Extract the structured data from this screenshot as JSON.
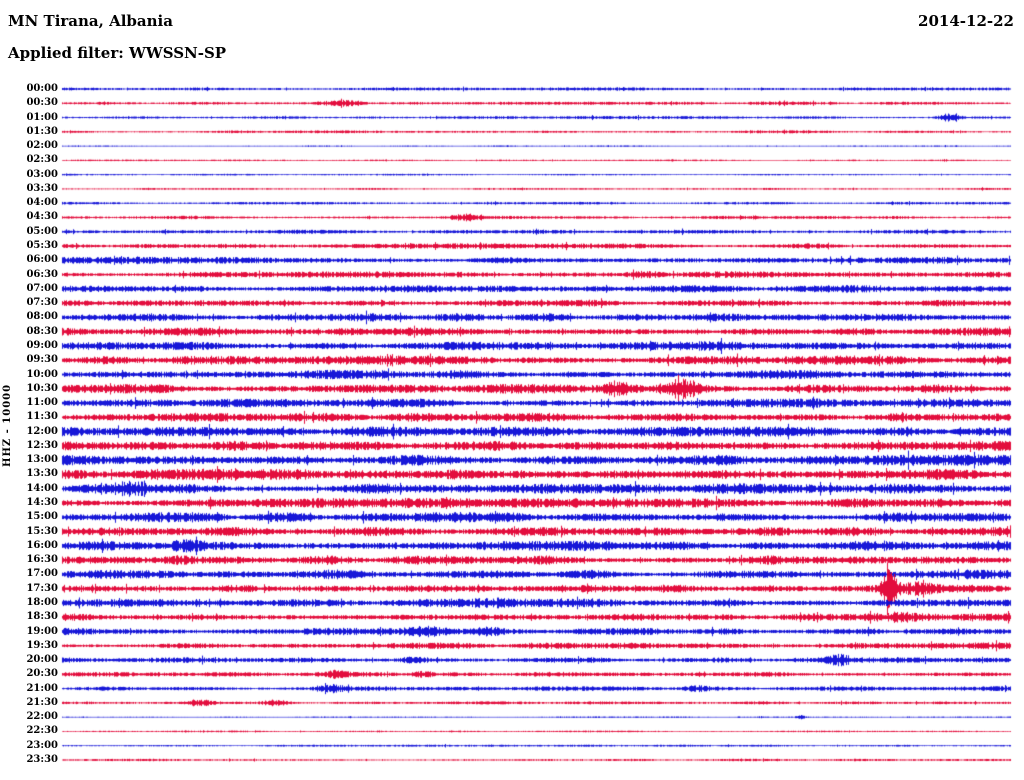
{
  "header": {
    "station": "MN Tirana, Albania",
    "date": "2014-12-22",
    "filter_line": "Applied filter: WWSSN-SP"
  },
  "chart_data": {
    "type": "line",
    "title": "MN Tirana, Albania helicorder",
    "ylabel": "HHZ - 10000",
    "xlabel": "",
    "legend": "none",
    "grid": false,
    "x_axis": {
      "start": "00:00",
      "minutes_per_line": 30,
      "lines": 48
    },
    "colors": {
      "blue": "#0b0bd6",
      "red": "#e20033"
    },
    "rows": [
      {
        "t": "00:00",
        "color": "blue",
        "a": 1.0,
        "b": []
      },
      {
        "t": "00:30",
        "color": "red",
        "a": 1.1,
        "b": [
          {
            "p": 0.3,
            "a": 2.2,
            "s": 0.014
          }
        ]
      },
      {
        "t": "01:00",
        "color": "blue",
        "a": 1.0,
        "b": [
          {
            "p": 0.935,
            "a": 3.0,
            "s": 0.008
          }
        ]
      },
      {
        "t": "01:30",
        "color": "red",
        "a": 1.0,
        "b": []
      },
      {
        "t": "02:00",
        "color": "blue",
        "a": 0.45,
        "b": []
      },
      {
        "t": "02:30",
        "color": "red",
        "a": 0.55,
        "b": []
      },
      {
        "t": "03:00",
        "color": "blue",
        "a": 0.6,
        "b": []
      },
      {
        "t": "03:30",
        "color": "red",
        "a": 0.7,
        "b": []
      },
      {
        "t": "04:00",
        "color": "blue",
        "a": 0.9,
        "b": []
      },
      {
        "t": "04:30",
        "color": "red",
        "a": 1.1,
        "b": [
          {
            "p": 0.425,
            "a": 2.8,
            "s": 0.012
          }
        ]
      },
      {
        "t": "05:00",
        "color": "blue",
        "a": 1.4,
        "b": []
      },
      {
        "t": "05:30",
        "color": "red",
        "a": 1.7,
        "b": [
          {
            "p": 0.55,
            "a": 0.8,
            "s": 0.03
          }
        ]
      },
      {
        "t": "06:00",
        "color": "blue",
        "a": 2.1,
        "b": []
      },
      {
        "t": "06:30",
        "color": "red",
        "a": 2.1,
        "b": [
          {
            "p": 0.615,
            "a": 1.5,
            "s": 0.012
          }
        ]
      },
      {
        "t": "07:00",
        "color": "blue",
        "a": 2.4,
        "b": []
      },
      {
        "t": "07:30",
        "color": "red",
        "a": 2.2,
        "b": []
      },
      {
        "t": "08:00",
        "color": "blue",
        "a": 2.7,
        "b": []
      },
      {
        "t": "08:30",
        "color": "red",
        "a": 2.9,
        "b": [
          {
            "p": 0.3,
            "a": 1.5,
            "s": 0.01
          }
        ]
      },
      {
        "t": "09:00",
        "color": "blue",
        "a": 2.9,
        "b": []
      },
      {
        "t": "09:30",
        "color": "red",
        "a": 3.0,
        "b": []
      },
      {
        "t": "10:00",
        "color": "blue",
        "a": 3.1,
        "b": []
      },
      {
        "t": "10:30",
        "color": "red",
        "a": 3.1,
        "b": [
          {
            "p": 0.585,
            "a": 4.5,
            "s": 0.013
          },
          {
            "p": 0.655,
            "a": 5.5,
            "s": 0.013
          }
        ]
      },
      {
        "t": "11:00",
        "color": "blue",
        "a": 3.4,
        "b": []
      },
      {
        "t": "11:30",
        "color": "red",
        "a": 3.2,
        "b": []
      },
      {
        "t": "12:00",
        "color": "blue",
        "a": 3.4,
        "b": []
      },
      {
        "t": "12:30",
        "color": "red",
        "a": 3.5,
        "b": []
      },
      {
        "t": "13:00",
        "color": "blue",
        "a": 3.9,
        "b": []
      },
      {
        "t": "13:30",
        "color": "red",
        "a": 3.6,
        "b": []
      },
      {
        "t": "14:00",
        "color": "blue",
        "a": 3.4,
        "b": [
          {
            "p": 0.075,
            "a": 3.5,
            "s": 0.012
          }
        ]
      },
      {
        "t": "14:30",
        "color": "red",
        "a": 3.2,
        "b": []
      },
      {
        "t": "15:00",
        "color": "blue",
        "a": 3.4,
        "b": [
          {
            "p": 0.47,
            "a": 1.5,
            "s": 0.02
          }
        ]
      },
      {
        "t": "15:30",
        "color": "red",
        "a": 3.2,
        "b": []
      },
      {
        "t": "16:00",
        "color": "blue",
        "a": 3.2,
        "b": [
          {
            "p": 0.13,
            "a": 2.5,
            "s": 0.01
          }
        ]
      },
      {
        "t": "16:30",
        "color": "red",
        "a": 3.1,
        "b": [
          {
            "p": 0.125,
            "a": 2.0,
            "s": 0.01
          }
        ]
      },
      {
        "t": "17:00",
        "color": "blue",
        "a": 3.0,
        "b": [
          {
            "p": 0.3,
            "a": 1.5,
            "s": 0.025
          }
        ]
      },
      {
        "t": "17:30",
        "color": "red",
        "a": 2.9,
        "b": [
          {
            "p": 0.872,
            "a": 16,
            "s": 0.0055
          },
          {
            "p": 0.9,
            "a": 3.0,
            "s": 0.012
          }
        ]
      },
      {
        "t": "18:00",
        "color": "blue",
        "a": 2.9,
        "b": [
          {
            "p": 0.455,
            "a": 2.5,
            "s": 0.015
          }
        ]
      },
      {
        "t": "18:30",
        "color": "red",
        "a": 2.7,
        "b": [
          {
            "p": 0.88,
            "a": 1.5,
            "s": 0.02
          }
        ]
      },
      {
        "t": "19:00",
        "color": "blue",
        "a": 2.4,
        "b": [
          {
            "p": 0.385,
            "a": 3.5,
            "s": 0.018
          },
          {
            "p": 0.45,
            "a": 2.5,
            "s": 0.012
          }
        ]
      },
      {
        "t": "19:30",
        "color": "red",
        "a": 2.1,
        "b": []
      },
      {
        "t": "20:00",
        "color": "blue",
        "a": 1.9,
        "b": [
          {
            "p": 0.82,
            "a": 3.2,
            "s": 0.009
          },
          {
            "p": 0.37,
            "a": 1.5,
            "s": 0.01
          }
        ]
      },
      {
        "t": "20:30",
        "color": "red",
        "a": 1.7,
        "b": [
          {
            "p": 0.29,
            "a": 2.2,
            "s": 0.009
          },
          {
            "p": 0.38,
            "a": 1.8,
            "s": 0.009
          }
        ]
      },
      {
        "t": "21:00",
        "color": "blue",
        "a": 1.5,
        "b": [
          {
            "p": 0.285,
            "a": 2.2,
            "s": 0.009
          },
          {
            "p": 0.67,
            "a": 1.8,
            "s": 0.011
          }
        ]
      },
      {
        "t": "21:30",
        "color": "red",
        "a": 1.2,
        "b": [
          {
            "p": 0.145,
            "a": 2.2,
            "s": 0.009
          },
          {
            "p": 0.225,
            "a": 2.2,
            "s": 0.009
          }
        ]
      },
      {
        "t": "22:00",
        "color": "blue",
        "a": 0.5,
        "b": [
          {
            "p": 0.78,
            "a": 1.4,
            "s": 0.004
          }
        ]
      },
      {
        "t": "22:30",
        "color": "red",
        "a": 0.6,
        "b": []
      },
      {
        "t": "23:00",
        "color": "blue",
        "a": 0.7,
        "b": []
      },
      {
        "t": "23:30",
        "color": "red",
        "a": 0.8,
        "b": []
      }
    ]
  }
}
